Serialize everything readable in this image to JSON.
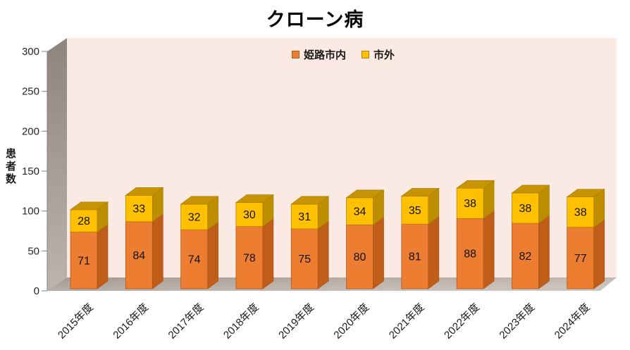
{
  "title": "クローン病",
  "legend": [
    {
      "label": "姫路市内",
      "color": "#ED7D31"
    },
    {
      "label": "市外",
      "color": "#FFC000"
    }
  ],
  "y_axis": {
    "label": "患者数",
    "ticks": [
      "0",
      "50",
      "100",
      "150",
      "200",
      "250",
      "300"
    ],
    "max": 300
  },
  "chart_data": {
    "type": "bar",
    "stacked": true,
    "threeD": true,
    "grid": false,
    "legend_position": "top-center",
    "title": "クローン病",
    "xlabel": "",
    "ylabel": "患者数",
    "ylim": [
      0,
      300
    ],
    "categories": [
      "2015年度",
      "2016年度",
      "2017年度",
      "2018年度",
      "2019年度",
      "2020年度",
      "2021年度",
      "2022年度",
      "2023年度",
      "2024年度"
    ],
    "series": [
      {
        "name": "姫路市内",
        "color": "#ED7D31",
        "side_color": "#C05E19",
        "top_color": "#B25615",
        "edge_color": "#A85114",
        "values": [
          71,
          84,
          74,
          78,
          75,
          80,
          81,
          88,
          82,
          77
        ]
      },
      {
        "name": "市外",
        "color": "#FFC000",
        "side_color": "#BD8E00",
        "top_color": "#C79405",
        "edge_color": "#A87E00",
        "values": [
          28,
          33,
          32,
          30,
          31,
          34,
          35,
          38,
          38,
          38
        ]
      }
    ]
  },
  "colors": {
    "background": "#FFFFFF",
    "back_wall": "#FBEAE4",
    "wall_dark": "#8F847D",
    "wall_light": "#BDB4AE",
    "floor_dark": "#A49A94",
    "floor_light": "#CDC4BE",
    "axis": "#808080",
    "tick_text": "#262626"
  }
}
